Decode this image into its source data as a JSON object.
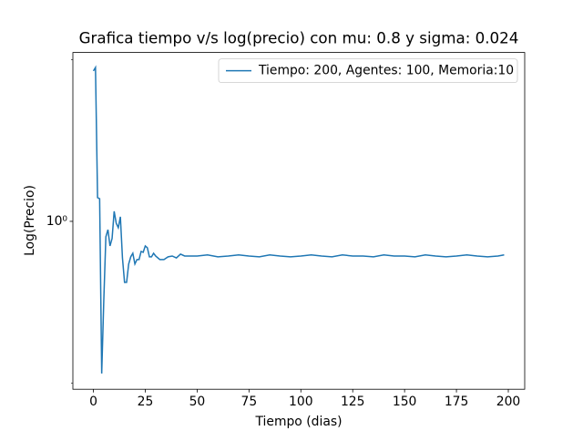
{
  "chart_data": {
    "type": "line",
    "title": "Grafica tiempo v/s log(precio) con mu: 0.8 y sigma: 0.024",
    "xlabel": "Tiempo (dias)",
    "ylabel": "Log(Precio)",
    "x": [
      0,
      1,
      2,
      3,
      4,
      5,
      6,
      7,
      8,
      9,
      10,
      11,
      12,
      13,
      14,
      15,
      16,
      17,
      18,
      19,
      20,
      21,
      22,
      23,
      24,
      25,
      26,
      27,
      28,
      29,
      30,
      32,
      34,
      36,
      38,
      40,
      42,
      44,
      46,
      50,
      55,
      60,
      65,
      70,
      75,
      80,
      85,
      90,
      95,
      100,
      105,
      110,
      115,
      120,
      125,
      130,
      135,
      140,
      145,
      150,
      155,
      160,
      165,
      170,
      175,
      180,
      185,
      190,
      195,
      198
    ],
    "series": [
      {
        "name": "Tiempo: 200, Agentes: 100, Memoria:10",
        "color": "#1f77b4",
        "values": [
          1.905,
          1.934,
          1.107,
          1.102,
          0.521,
          0.712,
          0.936,
          0.965,
          0.9,
          0.929,
          1.044,
          0.992,
          0.973,
          1.02,
          0.855,
          0.77,
          0.77,
          0.833,
          0.859,
          0.872,
          0.833,
          0.849,
          0.849,
          0.879,
          0.876,
          0.9,
          0.893,
          0.859,
          0.859,
          0.872,
          0.862,
          0.849,
          0.849,
          0.859,
          0.862,
          0.855,
          0.869,
          0.862,
          0.862,
          0.862,
          0.866,
          0.859,
          0.862,
          0.866,
          0.862,
          0.859,
          0.866,
          0.862,
          0.859,
          0.862,
          0.866,
          0.862,
          0.859,
          0.866,
          0.862,
          0.862,
          0.859,
          0.866,
          0.862,
          0.862,
          0.859,
          0.866,
          0.862,
          0.859,
          0.862,
          0.866,
          0.862,
          0.859,
          0.862,
          0.866
        ]
      }
    ],
    "xlim": [
      -9.9,
      207.9
    ],
    "xticks": [
      0,
      25,
      50,
      75,
      100,
      125,
      150,
      175,
      200
    ],
    "ylim": [
      0.487,
      2.062
    ],
    "log_y": true,
    "yticks": [
      {
        "value": 1,
        "label": "10⁰"
      }
    ],
    "minor_yticks": [
      0.5,
      2
    ],
    "legend": "upper right"
  }
}
